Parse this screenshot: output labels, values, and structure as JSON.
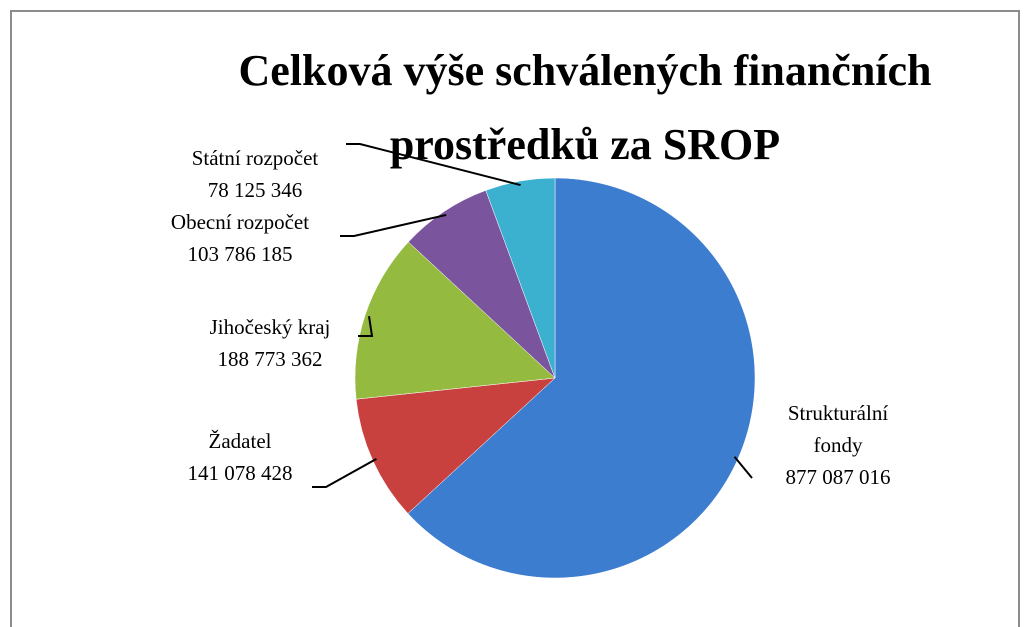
{
  "chart_data": {
    "type": "pie",
    "title": "Celková výše schválených finančních prostředků za SROP",
    "categories": [
      "Strukturální fondy",
      "Žadatel",
      "Jihočeský kraj",
      "Obecní rozpočet",
      "Státní rozpočet"
    ],
    "values": [
      877087016,
      141078428,
      188773362,
      103786185,
      78125346
    ],
    "value_labels": [
      "877 087 016",
      "141 078 428",
      "188 773 362",
      "103 786 185",
      "78 125 346"
    ],
    "colors": [
      "#3c7dd0",
      "#c9413e",
      "#94bb3f",
      "#7a559e",
      "#3bb0cf"
    ]
  }
}
